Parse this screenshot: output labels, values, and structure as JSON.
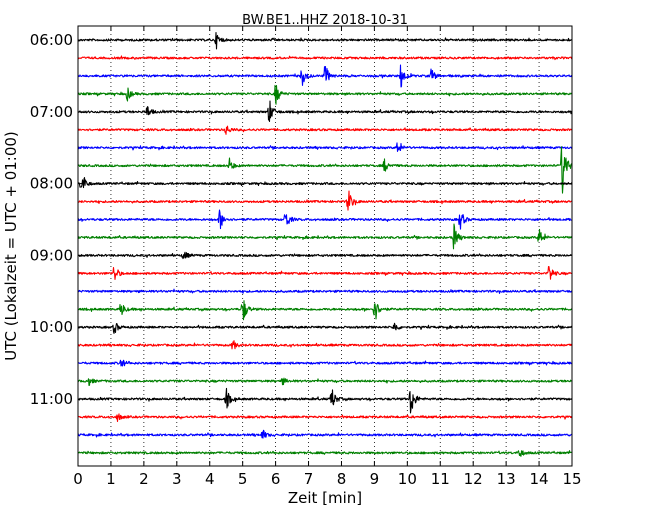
{
  "chart_data": {
    "type": "line",
    "title": "BW.BE1..HHZ 2018-10-31",
    "xlabel": "Zeit  [min]",
    "ylabel": "UTC (Lokalzeit = UTC + 01:00)",
    "xlim": [
      0,
      15
    ],
    "x_ticks": [
      "0",
      "1",
      "2",
      "3",
      "4",
      "5",
      "6",
      "7",
      "8",
      "9",
      "10",
      "11",
      "12",
      "13",
      "14",
      "15"
    ],
    "y_tick_labels": [
      "06:00",
      "07:00",
      "08:00",
      "09:00",
      "10:00",
      "11:00"
    ],
    "grid": "vertical dotted",
    "colors": [
      "#000000",
      "#ff0000",
      "#0000ff",
      "#008000"
    ],
    "rows": [
      {
        "start": "06:00",
        "color": "#000000",
        "events": [
          {
            "t": 4.2,
            "amp": 0.6
          }
        ]
      },
      {
        "start": "06:15",
        "color": "#ff0000",
        "events": []
      },
      {
        "start": "06:30",
        "color": "#0000ff",
        "events": [
          {
            "t": 6.8,
            "amp": 0.8
          },
          {
            "t": 7.5,
            "amp": 0.9
          },
          {
            "t": 9.8,
            "amp": 1.0
          },
          {
            "t": 10.7,
            "amp": 0.7
          }
        ]
      },
      {
        "start": "06:45",
        "color": "#008000",
        "events": [
          {
            "t": 1.5,
            "amp": 0.5
          },
          {
            "t": 6.0,
            "amp": 0.9
          }
        ]
      },
      {
        "start": "07:00",
        "color": "#000000",
        "events": [
          {
            "t": 2.1,
            "amp": 0.5
          },
          {
            "t": 5.8,
            "amp": 1.0
          }
        ]
      },
      {
        "start": "07:15",
        "color": "#ff0000",
        "events": [
          {
            "t": 4.5,
            "amp": 0.4
          }
        ]
      },
      {
        "start": "07:30",
        "color": "#0000ff",
        "events": [
          {
            "t": 9.7,
            "amp": 0.5
          }
        ]
      },
      {
        "start": "07:45",
        "color": "#008000",
        "events": [
          {
            "t": 4.6,
            "amp": 0.5
          },
          {
            "t": 9.3,
            "amp": 0.5
          },
          {
            "t": 14.7,
            "amp": 2.4
          }
        ]
      },
      {
        "start": "08:00",
        "color": "#000000",
        "events": [
          {
            "t": 0.1,
            "amp": 1.1
          }
        ]
      },
      {
        "start": "08:15",
        "color": "#ff0000",
        "events": [
          {
            "t": 8.2,
            "amp": 1.0
          }
        ]
      },
      {
        "start": "08:30",
        "color": "#0000ff",
        "events": [
          {
            "t": 4.3,
            "amp": 0.8
          },
          {
            "t": 6.3,
            "amp": 0.8
          },
          {
            "t": 11.6,
            "amp": 0.8
          }
        ]
      },
      {
        "start": "08:45",
        "color": "#008000",
        "events": [
          {
            "t": 11.4,
            "amp": 1.1
          },
          {
            "t": 14.0,
            "amp": 0.7
          }
        ]
      },
      {
        "start": "09:00",
        "color": "#000000",
        "events": [
          {
            "t": 3.2,
            "amp": 0.4
          }
        ]
      },
      {
        "start": "09:15",
        "color": "#ff0000",
        "events": [
          {
            "t": 1.1,
            "amp": 0.7
          },
          {
            "t": 14.3,
            "amp": 0.8
          }
        ]
      },
      {
        "start": "09:30",
        "color": "#0000ff",
        "events": []
      },
      {
        "start": "09:45",
        "color": "#008000",
        "events": [
          {
            "t": 1.3,
            "amp": 0.6
          },
          {
            "t": 5.0,
            "amp": 1.1
          },
          {
            "t": 9.0,
            "amp": 1.1
          }
        ]
      },
      {
        "start": "10:00",
        "color": "#000000",
        "events": [
          {
            "t": 1.1,
            "amp": 0.5
          },
          {
            "t": 9.6,
            "amp": 0.4
          }
        ]
      },
      {
        "start": "10:15",
        "color": "#ff0000",
        "events": [
          {
            "t": 4.7,
            "amp": 0.4
          }
        ]
      },
      {
        "start": "10:30",
        "color": "#0000ff",
        "events": [
          {
            "t": 1.3,
            "amp": 0.4
          }
        ]
      },
      {
        "start": "10:45",
        "color": "#008000",
        "events": [
          {
            "t": 0.3,
            "amp": 0.4
          },
          {
            "t": 6.2,
            "amp": 0.3
          }
        ]
      },
      {
        "start": "11:00",
        "color": "#000000",
        "events": [
          {
            "t": 4.5,
            "amp": 0.8
          },
          {
            "t": 7.7,
            "amp": 0.9
          },
          {
            "t": 10.1,
            "amp": 1.4
          }
        ]
      },
      {
        "start": "11:15",
        "color": "#ff0000",
        "events": [
          {
            "t": 1.2,
            "amp": 0.3
          }
        ]
      },
      {
        "start": "11:30",
        "color": "#0000ff",
        "events": [
          {
            "t": 5.6,
            "amp": 0.4
          }
        ]
      },
      {
        "start": "11:45",
        "color": "#008000",
        "events": [
          {
            "t": 13.4,
            "amp": 0.4
          }
        ]
      }
    ]
  }
}
